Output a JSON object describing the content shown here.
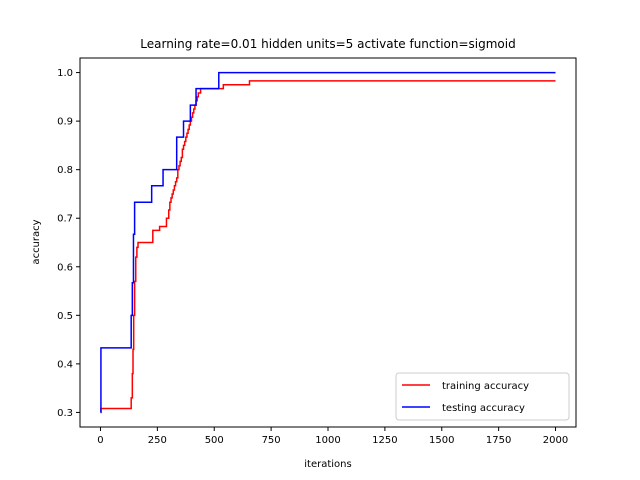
{
  "chart_data": {
    "type": "line",
    "title": "Learning rate=0.01 hidden units=5 activate function=sigmoid",
    "xlabel": "iterations",
    "ylabel": "accuracy",
    "xlim": [
      -90,
      2090
    ],
    "ylim": [
      0.27,
      1.03
    ],
    "xticks": [
      0,
      250,
      500,
      750,
      1000,
      1250,
      1500,
      1750,
      2000
    ],
    "yticks": [
      0.3,
      0.4,
      0.5,
      0.6,
      0.7,
      0.8,
      0.9,
      1.0
    ],
    "xtick_labels": [
      "0",
      "250",
      "500",
      "750",
      "1000",
      "1250",
      "1500",
      "1750",
      "2000"
    ],
    "ytick_labels": [
      "0.3",
      "0.4",
      "0.5",
      "0.6",
      "0.7",
      "0.8",
      "0.9",
      "1.0"
    ],
    "grid": false,
    "legend_position": "lower-right",
    "series": [
      {
        "name": "training accuracy",
        "color": "#ff0000",
        "step": true,
        "x": [
          0,
          2,
          130,
          135,
          140,
          143,
          146,
          150,
          155,
          160,
          165,
          170,
          230,
          260,
          290,
          300,
          305,
          310,
          315,
          320,
          325,
          330,
          335,
          340,
          345,
          350,
          355,
          360,
          365,
          370,
          375,
          380,
          385,
          390,
          395,
          400,
          405,
          410,
          415,
          420,
          425,
          430,
          440,
          540,
          655,
          2000
        ],
        "y": [
          0.3,
          0.308,
          0.308,
          0.33,
          0.38,
          0.43,
          0.5,
          0.57,
          0.62,
          0.64,
          0.65,
          0.65,
          0.675,
          0.683,
          0.7,
          0.717,
          0.733,
          0.742,
          0.75,
          0.758,
          0.767,
          0.775,
          0.783,
          0.8,
          0.808,
          0.817,
          0.825,
          0.842,
          0.85,
          0.858,
          0.867,
          0.875,
          0.883,
          0.892,
          0.9,
          0.908,
          0.917,
          0.925,
          0.933,
          0.942,
          0.95,
          0.958,
          0.967,
          0.975,
          0.983,
          0.983
        ]
      },
      {
        "name": "testing accuracy",
        "color": "#0000ff",
        "step": true,
        "x": [
          0,
          2,
          130,
          135,
          140,
          145,
          150,
          225,
          275,
          335,
          365,
          395,
          420,
          520,
          2000
        ],
        "y": [
          0.3,
          0.433,
          0.433,
          0.5,
          0.567,
          0.667,
          0.733,
          0.767,
          0.8,
          0.867,
          0.9,
          0.933,
          0.967,
          1.0,
          1.0
        ]
      }
    ]
  }
}
